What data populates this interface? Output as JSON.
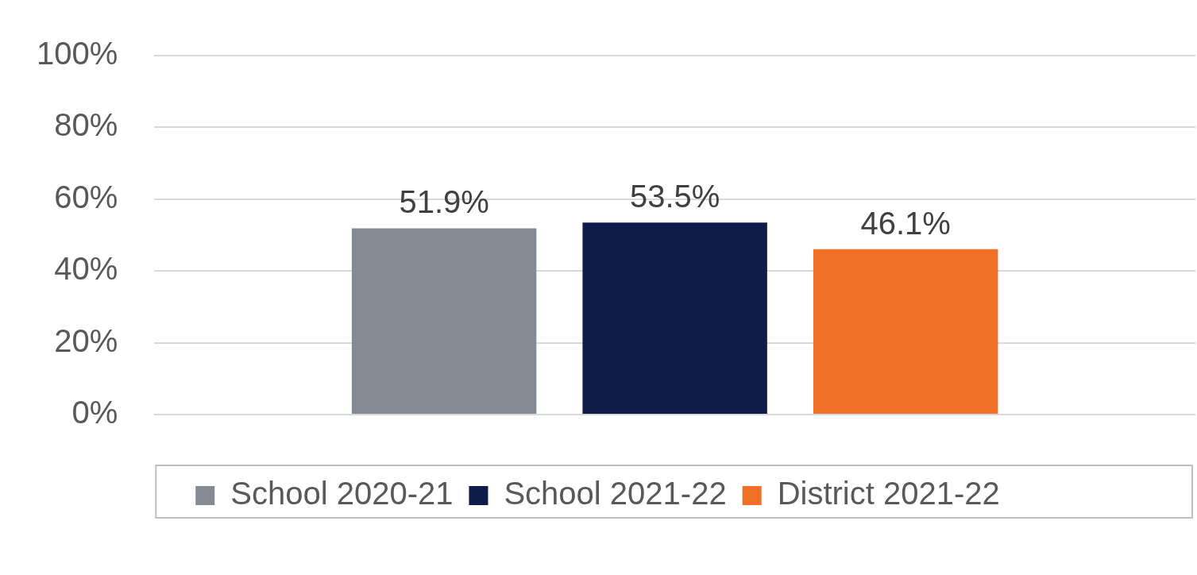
{
  "chart_data": {
    "type": "bar",
    "categories": [
      null
    ],
    "series": [
      {
        "name": "School 2020-21",
        "color": "#858b94",
        "values": [
          51.9
        ],
        "value_labels": [
          "51.9%"
        ]
      },
      {
        "name": "School 2021-22",
        "color": "#0f1c4a",
        "values": [
          53.5
        ],
        "value_labels": [
          "53.5%"
        ]
      },
      {
        "name": "District 2021-22",
        "color": "#f07027",
        "values": [
          46.1
        ],
        "value_labels": [
          "46.1%"
        ]
      }
    ],
    "ylim": [
      0,
      100
    ],
    "yticks": [
      {
        "value": 0,
        "label": "0%"
      },
      {
        "value": 20,
        "label": "20%"
      },
      {
        "value": 40,
        "label": "40%"
      },
      {
        "value": 60,
        "label": "60%"
      },
      {
        "value": 80,
        "label": "80%"
      },
      {
        "value": 100,
        "label": "100%"
      }
    ],
    "grid": true,
    "legend": "bottom",
    "data_labels": true
  }
}
